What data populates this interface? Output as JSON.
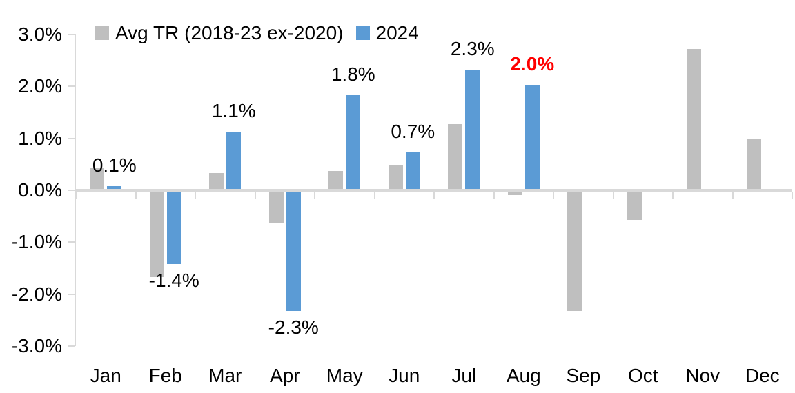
{
  "chart_data": {
    "type": "bar",
    "title": "",
    "categories": [
      "Jan",
      "Feb",
      "Mar",
      "Apr",
      "May",
      "Jun",
      "Jul",
      "Aug",
      "Sep",
      "Oct",
      "Nov",
      "Dec"
    ],
    "series": [
      {
        "name": "Avg TR (2018-23 ex-2020)",
        "color": "#BFBFBF",
        "values": [
          0.4,
          -1.65,
          0.3,
          -0.6,
          0.35,
          0.45,
          1.25,
          -0.07,
          -2.3,
          -0.55,
          2.7,
          0.95
        ]
      },
      {
        "name": "2024",
        "color": "#5B9BD5",
        "values": [
          0.05,
          -1.4,
          1.1,
          -2.3,
          1.8,
          0.7,
          2.3,
          2.0,
          null,
          null,
          null,
          null
        ],
        "data_labels": [
          {
            "text": "0.1%"
          },
          {
            "text": "-1.4%"
          },
          {
            "text": "1.1%"
          },
          {
            "text": "-2.3%"
          },
          {
            "text": "1.8%"
          },
          {
            "text": "0.7%"
          },
          {
            "text": "2.3%"
          },
          {
            "text": "2.0%",
            "color": "#FF0000",
            "bold": true
          },
          null,
          null,
          null,
          null
        ]
      }
    ],
    "y_axis": {
      "min": -3.0,
      "max": 3.0,
      "tick_step": 1.0,
      "tick_values": [
        3,
        2,
        1,
        0,
        -1,
        -2,
        -3
      ],
      "tick_labels": [
        "3.0%",
        "2.0%",
        "1.0%",
        "0.0%",
        "-1.0%",
        "-2.0%",
        "-3.0%"
      ],
      "format": "percent"
    },
    "x_axis": {
      "tick_labels": [
        "Jan",
        "Feb",
        "Mar",
        "Apr",
        "May",
        "Jun",
        "Jul",
        "Aug",
        "Sep",
        "Oct",
        "Nov",
        "Dec"
      ]
    },
    "legend_position": "top-left",
    "gridlines": false,
    "background_color": "#FFFFFF",
    "axis_color": "#D9D9D9",
    "text_color": "#000000",
    "highlight_color": "#FF0000"
  }
}
